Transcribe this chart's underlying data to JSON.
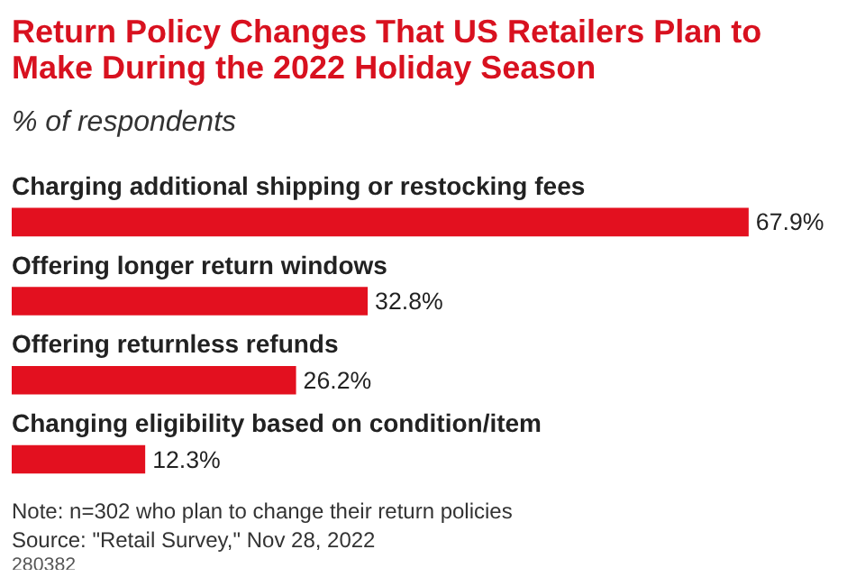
{
  "chart_data": {
    "type": "bar",
    "orientation": "horizontal",
    "title": "Return Policy Changes That US Retailers Plan to Make During the 2022 Holiday Season",
    "subtitle": "% of respondents",
    "categories": [
      "Charging additional shipping or restocking fees",
      "Offering longer return windows",
      "Offering returnless refunds",
      "Changing eligibility based on condition/item"
    ],
    "values": [
      67.9,
      32.8,
      26.2,
      12.3
    ],
    "value_labels": [
      "67.9%",
      "32.8%",
      "26.2%",
      "12.3%"
    ],
    "color": "#e3101f",
    "grid": false,
    "annotations": [
      "Note: n=302 who plan to change their return policies",
      "Source: \"Retail Survey,\" Nov 28, 2022",
      "280382"
    ]
  }
}
